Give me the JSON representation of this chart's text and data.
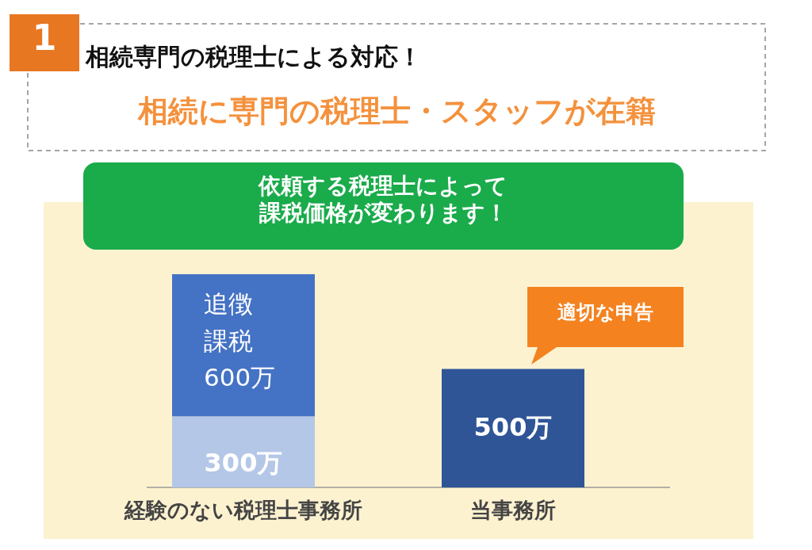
{
  "chart_data": {
    "type": "bar",
    "stacked": true,
    "title": "相続専門の税理士による対応！",
    "subtitle": "相続に専門の税理士・スタッフが在籍",
    "categories": [
      "経験のない税理士事務所",
      "当事務所"
    ],
    "series": [
      {
        "values": [
          300,
          500
        ],
        "colors": [
          "#b4c7e7",
          "#2f5597"
        ],
        "value_labels": [
          "300万",
          "500万"
        ]
      },
      {
        "name": "追徴課税",
        "color": "#4472c4",
        "values": [
          600,
          null
        ],
        "value_labels": [
          "600万",
          null
        ]
      }
    ],
    "annotations": [
      "1",
      "依頼する税理士によって課税価格が変わります！",
      "適切な申告"
    ]
  }
}
